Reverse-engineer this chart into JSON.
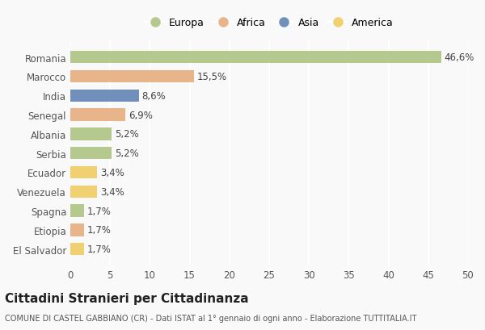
{
  "countries": [
    "Romania",
    "Marocco",
    "India",
    "Senegal",
    "Albania",
    "Serbia",
    "Ecuador",
    "Venezuela",
    "Spagna",
    "Etiopia",
    "El Salvador"
  ],
  "values": [
    46.6,
    15.5,
    8.6,
    6.9,
    5.2,
    5.2,
    3.4,
    3.4,
    1.7,
    1.7,
    1.7
  ],
  "labels": [
    "46,6%",
    "15,5%",
    "8,6%",
    "6,9%",
    "5,2%",
    "5,2%",
    "3,4%",
    "3,4%",
    "1,7%",
    "1,7%",
    "1,7%"
  ],
  "colors": [
    "#b5c98e",
    "#e8b48a",
    "#7090bb",
    "#e8b48a",
    "#b5c98e",
    "#b5c98e",
    "#f0d070",
    "#f0d070",
    "#b5c98e",
    "#e8b48a",
    "#f0d070"
  ],
  "continent_colors": {
    "Europa": "#b5c98e",
    "Africa": "#e8b48a",
    "Asia": "#7090bb",
    "America": "#f0d070"
  },
  "legend_labels": [
    "Europa",
    "Africa",
    "Asia",
    "America"
  ],
  "title": "Cittadini Stranieri per Cittadinanza",
  "subtitle": "COMUNE DI CASTEL GABBIANO (CR) - Dati ISTAT al 1° gennaio di ogni anno - Elaborazione TUTTITALIA.IT",
  "xlim": [
    0,
    50
  ],
  "xticks": [
    0,
    5,
    10,
    15,
    20,
    25,
    30,
    35,
    40,
    45,
    50
  ],
  "background_color": "#f9f9f9",
  "grid_color": "#ffffff",
  "bar_height": 0.65,
  "label_fontsize": 8.5,
  "title_fontsize": 11,
  "subtitle_fontsize": 7,
  "tick_fontsize": 8.5,
  "legend_fontsize": 9
}
